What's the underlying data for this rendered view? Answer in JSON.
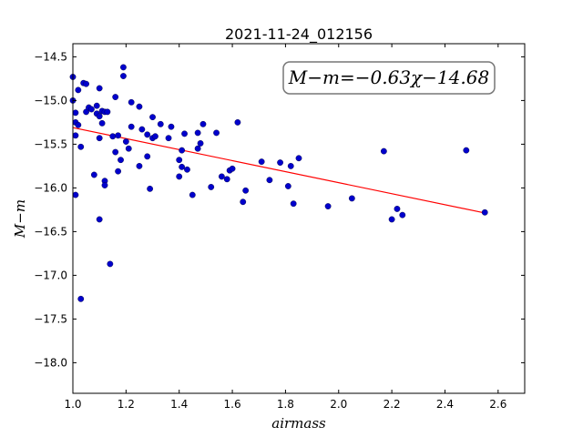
{
  "chart_data": {
    "type": "scatter",
    "title": "2021-11-24_012156",
    "xlabel": "airmass",
    "ylabel": "M−m",
    "xlim": [
      1.0,
      2.7
    ],
    "ylim": [
      -18.35,
      -14.35
    ],
    "y_inverted": false,
    "grid": false,
    "x_ticks": [
      1.0,
      1.2,
      1.4,
      1.6,
      1.8,
      2.0,
      2.2,
      2.4,
      2.6
    ],
    "x_tick_labels": [
      "1.0",
      "1.2",
      "1.4",
      "1.6",
      "1.8",
      "2.0",
      "2.2",
      "2.4",
      "2.6"
    ],
    "y_ticks": [
      -14.5,
      -15.0,
      -15.5,
      -16.0,
      -16.5,
      -17.0,
      -17.5,
      -18.0
    ],
    "y_tick_labels": [
      "−14.5",
      "−15.0",
      "−15.5",
      "−16.0",
      "−16.5",
      "−17.0",
      "−17.5",
      "−18.0"
    ],
    "annotation": "M−m=−0.63χ−14.68",
    "fit": {
      "slope": -0.63,
      "intercept": -14.68,
      "x_range": [
        1.0,
        2.55
      ],
      "color": "#ff0000"
    },
    "marker_color": "#0000cc",
    "points": [
      [
        1.0,
        -14.73
      ],
      [
        1.0,
        -15.0
      ],
      [
        1.01,
        -15.14
      ],
      [
        1.01,
        -15.25
      ],
      [
        1.02,
        -14.88
      ],
      [
        1.01,
        -15.4
      ],
      [
        1.02,
        -15.28
      ],
      [
        1.01,
        -16.08
      ],
      [
        1.03,
        -15.53
      ],
      [
        1.04,
        -14.8
      ],
      [
        1.05,
        -14.81
      ],
      [
        1.05,
        -15.13
      ],
      [
        1.06,
        -15.08
      ],
      [
        1.03,
        -17.27
      ],
      [
        1.07,
        -15.1
      ],
      [
        1.08,
        -15.85
      ],
      [
        1.09,
        -15.06
      ],
      [
        1.09,
        -15.15
      ],
      [
        1.1,
        -14.86
      ],
      [
        1.1,
        -15.18
      ],
      [
        1.1,
        -15.43
      ],
      [
        1.11,
        -15.12
      ],
      [
        1.11,
        -15.26
      ],
      [
        1.12,
        -15.13
      ],
      [
        1.12,
        -15.92
      ],
      [
        1.12,
        -15.97
      ],
      [
        1.13,
        -15.13
      ],
      [
        1.15,
        -15.41
      ],
      [
        1.16,
        -15.59
      ],
      [
        1.16,
        -14.96
      ],
      [
        1.17,
        -15.81
      ],
      [
        1.17,
        -15.4
      ],
      [
        1.18,
        -15.68
      ],
      [
        1.19,
        -14.62
      ],
      [
        1.19,
        -14.72
      ],
      [
        1.2,
        -15.47
      ],
      [
        1.21,
        -15.55
      ],
      [
        1.22,
        -15.02
      ],
      [
        1.22,
        -15.3
      ],
      [
        1.1,
        -16.36
      ],
      [
        1.14,
        -16.87
      ],
      [
        1.25,
        -15.07
      ],
      [
        1.25,
        -15.75
      ],
      [
        1.26,
        -15.33
      ],
      [
        1.28,
        -15.64
      ],
      [
        1.28,
        -15.39
      ],
      [
        1.29,
        -16.01
      ],
      [
        1.3,
        -15.19
      ],
      [
        1.3,
        -15.43
      ],
      [
        1.31,
        -15.41
      ],
      [
        1.33,
        -15.27
      ],
      [
        1.36,
        -15.43
      ],
      [
        1.37,
        -15.3
      ],
      [
        1.4,
        -15.87
      ],
      [
        1.4,
        -15.68
      ],
      [
        1.41,
        -15.57
      ],
      [
        1.41,
        -15.76
      ],
      [
        1.42,
        -15.38
      ],
      [
        1.43,
        -15.79
      ],
      [
        1.45,
        -16.08
      ],
      [
        1.47,
        -15.37
      ],
      [
        1.47,
        -15.55
      ],
      [
        1.48,
        -15.49
      ],
      [
        1.49,
        -15.27
      ],
      [
        1.52,
        -15.99
      ],
      [
        1.54,
        -15.37
      ],
      [
        1.56,
        -15.87
      ],
      [
        1.58,
        -15.9
      ],
      [
        1.59,
        -15.8
      ],
      [
        1.6,
        -15.78
      ],
      [
        1.62,
        -15.25
      ],
      [
        1.64,
        -16.16
      ],
      [
        1.65,
        -16.03
      ],
      [
        1.71,
        -15.7
      ],
      [
        1.74,
        -15.91
      ],
      [
        1.78,
        -15.71
      ],
      [
        1.81,
        -15.98
      ],
      [
        1.82,
        -15.75
      ],
      [
        1.83,
        -16.18
      ],
      [
        1.85,
        -15.66
      ],
      [
        1.96,
        -16.21
      ],
      [
        2.05,
        -16.12
      ],
      [
        2.17,
        -15.58
      ],
      [
        2.2,
        -16.36
      ],
      [
        2.22,
        -16.24
      ],
      [
        2.24,
        -16.31
      ],
      [
        2.48,
        -15.57
      ],
      [
        2.55,
        -16.28
      ]
    ]
  }
}
